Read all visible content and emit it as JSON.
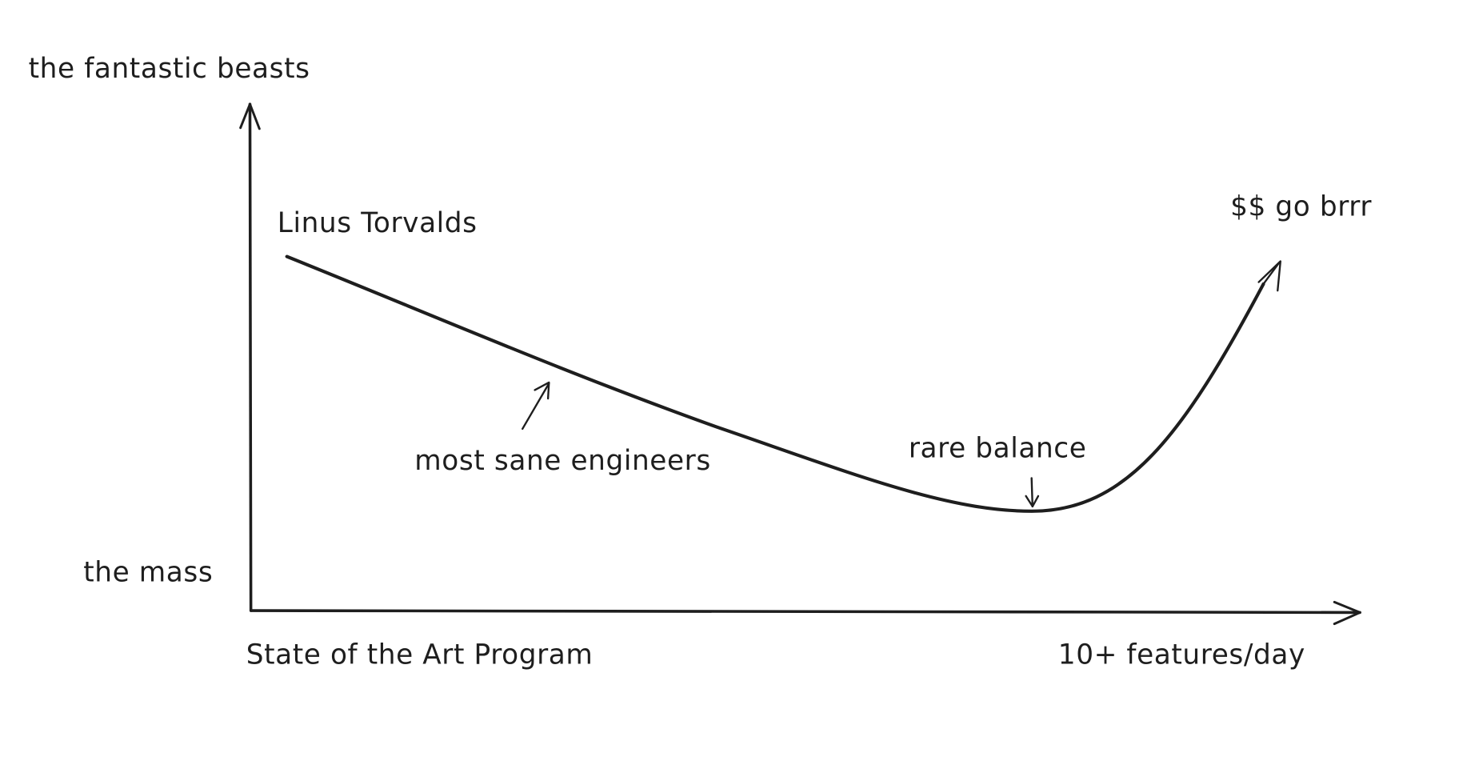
{
  "diagram": {
    "y_axis": {
      "top_label": "the fantastic beasts",
      "bottom_label": "the mass"
    },
    "x_axis": {
      "left_label": "State of the Art Program",
      "right_label": "10+ features/day"
    },
    "annotations": {
      "curve_start": "Linus Torvalds",
      "curve_middle": "most sane engineers",
      "curve_minimum": "rare balance",
      "curve_end": "$$ go brrr"
    },
    "colors": {
      "ink": "#1e1e1e",
      "background": "#ffffff"
    }
  }
}
